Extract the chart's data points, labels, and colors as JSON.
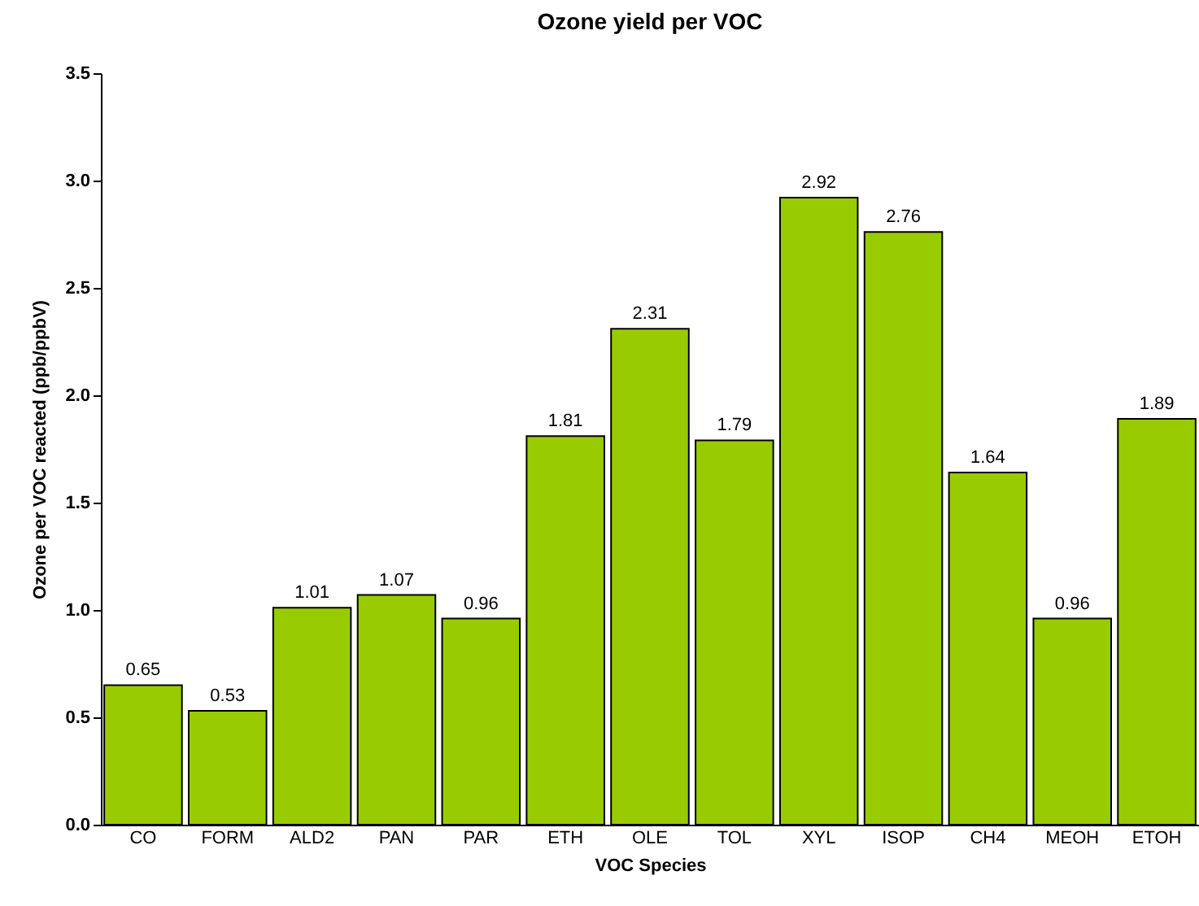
{
  "chart_data": {
    "type": "bar",
    "title": "Ozone yield per VOC",
    "xlabel": "VOC Species",
    "ylabel": "Ozone per VOC reacted (ppb/ppbV)",
    "categories": [
      "CO",
      "FORM",
      "ALD2",
      "PAN",
      "PAR",
      "ETH",
      "OLE",
      "TOL",
      "XYL",
      "ISOP",
      "CH4",
      "MEOH",
      "ETOH"
    ],
    "values": [
      0.65,
      0.53,
      1.01,
      1.07,
      0.96,
      1.81,
      2.31,
      1.79,
      2.92,
      2.76,
      1.64,
      0.96,
      1.89
    ],
    "color": "#99cc00",
    "ylim": [
      0,
      3.5
    ],
    "yticks": [
      {
        "value": 0,
        "label": "0.0"
      },
      {
        "value": 0.5,
        "label": "0.5"
      },
      {
        "value": 1,
        "label": "1.0"
      },
      {
        "value": 1.5,
        "label": "1.5"
      },
      {
        "value": 2,
        "label": "2.0"
      },
      {
        "value": 2.5,
        "label": "2.5"
      },
      {
        "value": 3,
        "label": "3.0"
      },
      {
        "value": 3.5,
        "label": "3.5"
      }
    ],
    "data_labels": true
  }
}
